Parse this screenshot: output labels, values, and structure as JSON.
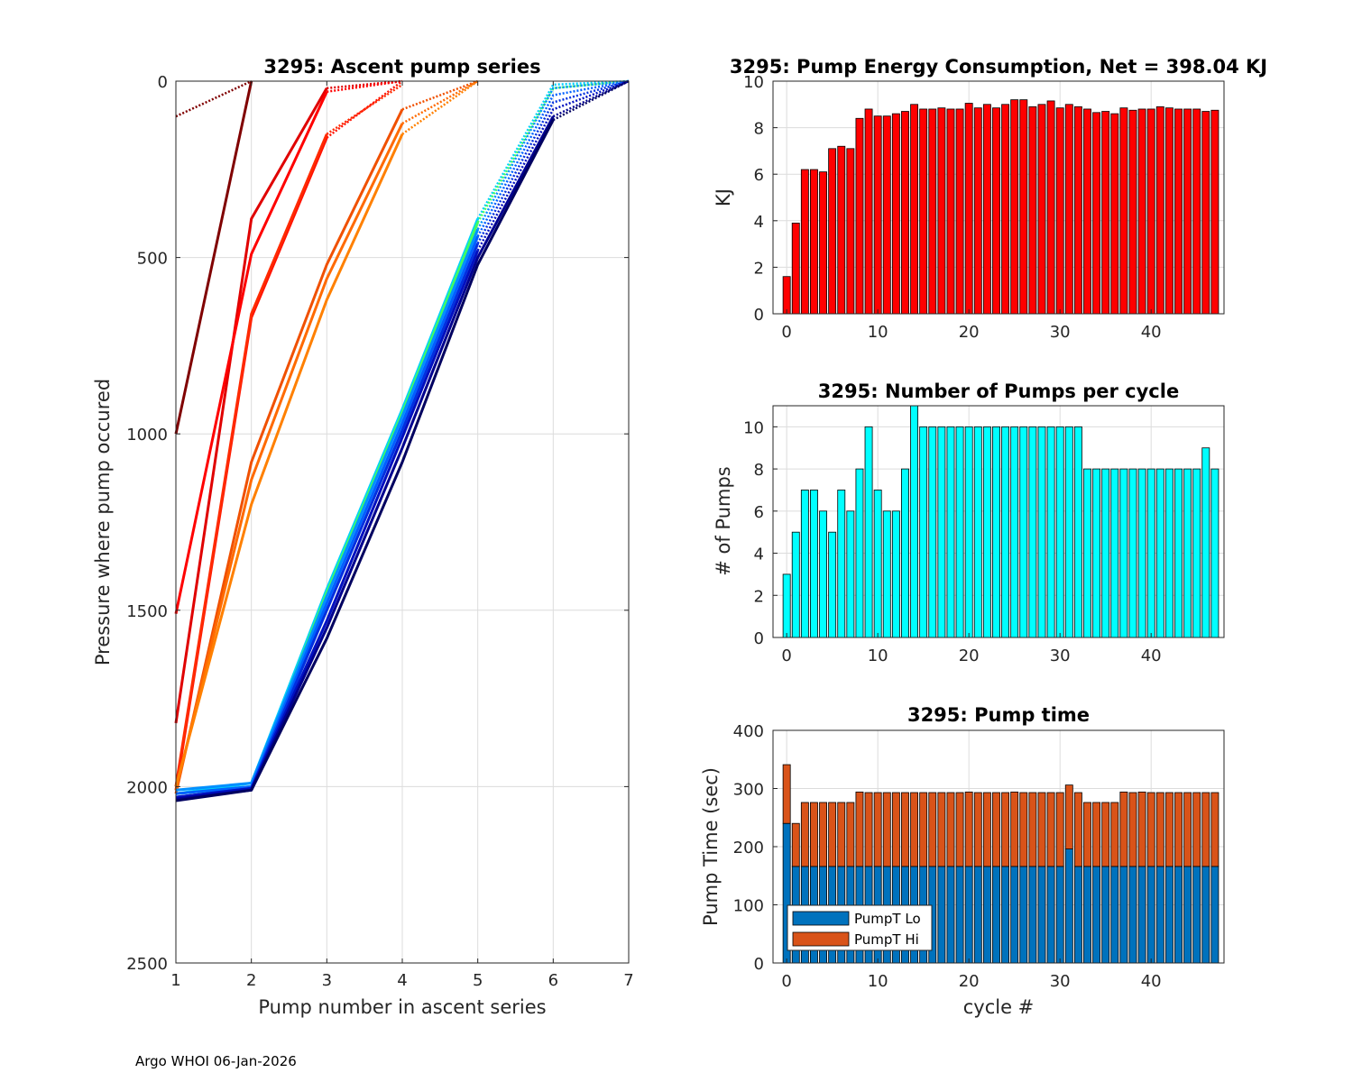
{
  "footer": "Argo WHOI 06-Jan-2026",
  "colors": {
    "energy_bar": "#ff0000",
    "pumps_bar": "#00ffff",
    "pumpt_lo": "#0072bd",
    "pumpt_hi": "#d95319"
  },
  "chart_data": [
    {
      "id": "ascent",
      "type": "line",
      "title": "3295: Ascent pump series",
      "xlabel": "Pump number in ascent series",
      "ylabel": "Pressure where pump occured",
      "xlim": [
        1,
        7
      ],
      "ylim": [
        0,
        2500
      ],
      "y_reversed": true,
      "xticks": [
        "1",
        "2",
        "3",
        "4",
        "5",
        "6",
        "7"
      ],
      "yticks": [
        "0",
        "500",
        "1000",
        "1500",
        "2000",
        "2500"
      ],
      "series": [
        {
          "name": "c0",
          "color": "#800000",
          "dotted_from": 1,
          "points": [
            [
              1,
              1000
            ],
            [
              2,
              0
            ]
          ]
        },
        {
          "name": "c0b",
          "color": "#800000",
          "dotted_from": 0,
          "points": [
            [
              1,
              100
            ],
            [
              2,
              0
            ]
          ]
        },
        {
          "name": "c1",
          "color": "#e00000",
          "dotted_from": 2,
          "points": [
            [
              1,
              1820
            ],
            [
              2,
              390
            ],
            [
              3,
              20
            ],
            [
              4,
              0
            ]
          ]
        },
        {
          "name": "c2",
          "color": "#ff0000",
          "dotted_from": 2,
          "points": [
            [
              1,
              1510
            ],
            [
              2,
              490
            ],
            [
              3,
              30
            ],
            [
              4,
              0
            ]
          ]
        },
        {
          "name": "c3",
          "color": "#ff1000",
          "dotted_from": 2,
          "points": [
            [
              1,
              2010
            ],
            [
              2,
              670
            ],
            [
              3,
              160
            ],
            [
              4,
              0
            ]
          ]
        },
        {
          "name": "c4",
          "color": "#ff2a00",
          "dotted_from": 2,
          "points": [
            [
              1,
              2000
            ],
            [
              2,
              660
            ],
            [
              3,
              150
            ],
            [
              4,
              10
            ]
          ]
        },
        {
          "name": "c5",
          "color": "#f05000",
          "dotted_from": 3,
          "points": [
            [
              1,
              2020
            ],
            [
              2,
              1080
            ],
            [
              3,
              520
            ],
            [
              4,
              80
            ],
            [
              5,
              0
            ]
          ]
        },
        {
          "name": "c6",
          "color": "#ff6a00",
          "dotted_from": 3,
          "points": [
            [
              1,
              2010
            ],
            [
              2,
              1130
            ],
            [
              3,
              560
            ],
            [
              4,
              120
            ],
            [
              5,
              0
            ]
          ]
        },
        {
          "name": "c7",
          "color": "#ff8000",
          "dotted_from": 3,
          "points": [
            [
              1,
              2000
            ],
            [
              2,
              1200
            ],
            [
              3,
              620
            ],
            [
              4,
              150
            ],
            [
              5,
              0
            ]
          ]
        },
        {
          "name": "c8",
          "color": "#00d0ff",
          "dotted_from": 4,
          "points": [
            [
              1,
              2020
            ],
            [
              2,
              1990
            ],
            [
              3,
              1440
            ],
            [
              4,
              930
            ],
            [
              5,
              390
            ],
            [
              6,
              10
            ],
            [
              7,
              0
            ]
          ]
        },
        {
          "name": "c9",
          "color": "#40ff60",
          "dotted_from": 4,
          "points": [
            [
              1,
              2020
            ],
            [
              2,
              2000
            ],
            [
              3,
              1450
            ],
            [
              4,
              940
            ],
            [
              5,
              400
            ],
            [
              6,
              20
            ],
            [
              7,
              0
            ]
          ]
        },
        {
          "name": "c10",
          "color": "#0090ff",
          "dotted_from": 4,
          "points": [
            [
              1,
              2010
            ],
            [
              2,
              1990
            ],
            [
              3,
              1460
            ],
            [
              4,
              950
            ],
            [
              5,
              420
            ],
            [
              6,
              20
            ],
            [
              7,
              0
            ]
          ]
        },
        {
          "name": "c11",
          "color": "#0060ff",
          "dotted_from": 4,
          "points": [
            [
              1,
              2020
            ],
            [
              2,
              2000
            ],
            [
              3,
              1480
            ],
            [
              4,
              970
            ],
            [
              5,
              440
            ],
            [
              6,
              40
            ],
            [
              7,
              0
            ]
          ]
        },
        {
          "name": "c12",
          "color": "#0030e0",
          "dotted_from": 4,
          "points": [
            [
              1,
              2030
            ],
            [
              2,
              2005
            ],
            [
              3,
              1500
            ],
            [
              4,
              990
            ],
            [
              5,
              460
            ],
            [
              6,
              60
            ],
            [
              7,
              0
            ]
          ]
        },
        {
          "name": "c13",
          "color": "#0010c0",
          "dotted_from": 4,
          "points": [
            [
              1,
              2030
            ],
            [
              2,
              2005
            ],
            [
              3,
              1530
            ],
            [
              4,
              1010
            ],
            [
              5,
              480
            ],
            [
              6,
              80
            ],
            [
              7,
              0
            ]
          ]
        },
        {
          "name": "c14",
          "color": "#000090",
          "dotted_from": 5,
          "points": [
            [
              1,
              2035
            ],
            [
              2,
              2010
            ],
            [
              3,
              1550
            ],
            [
              4,
              1040
            ],
            [
              5,
              500
            ],
            [
              6,
              100
            ],
            [
              7,
              0
            ]
          ]
        },
        {
          "name": "c15",
          "color": "#000060",
          "dotted_from": 5,
          "points": [
            [
              1,
              2040
            ],
            [
              2,
              2010
            ],
            [
              3,
              1580
            ],
            [
              4,
              1080
            ],
            [
              5,
              520
            ],
            [
              6,
              110
            ],
            [
              7,
              0
            ]
          ]
        }
      ]
    },
    {
      "id": "energy",
      "type": "bar",
      "title": "3295: Pump Energy Consumption,  Net = 398.04 KJ",
      "xlabel": "",
      "ylabel": "KJ",
      "xlim": [
        -1.5,
        48
      ],
      "ylim": [
        0,
        10
      ],
      "xticks": [
        "0",
        "10",
        "20",
        "30",
        "40"
      ],
      "yticks": [
        "0",
        "2",
        "4",
        "6",
        "8",
        "10"
      ],
      "categories": [
        0,
        1,
        2,
        3,
        4,
        5,
        6,
        7,
        8,
        9,
        10,
        11,
        12,
        13,
        14,
        15,
        16,
        17,
        18,
        19,
        20,
        21,
        22,
        23,
        24,
        25,
        26,
        27,
        28,
        29,
        30,
        31,
        32,
        33,
        34,
        35,
        36,
        37,
        38,
        39,
        40,
        41,
        42,
        43,
        44,
        45,
        46,
        47
      ],
      "values": [
        1.6,
        3.9,
        6.2,
        6.2,
        6.1,
        7.1,
        7.2,
        7.1,
        8.4,
        8.8,
        8.5,
        8.5,
        8.6,
        8.7,
        9.0,
        8.8,
        8.8,
        8.85,
        8.8,
        8.8,
        9.05,
        8.85,
        9.0,
        8.85,
        9.0,
        9.2,
        9.2,
        8.9,
        9.0,
        9.15,
        8.85,
        9.0,
        8.9,
        8.8,
        8.65,
        8.7,
        8.6,
        8.85,
        8.75,
        8.8,
        8.8,
        8.9,
        8.85,
        8.8,
        8.8,
        8.8,
        8.7,
        8.75
      ]
    },
    {
      "id": "pumps",
      "type": "bar",
      "title": "3295: Number of Pumps per cycle",
      "xlabel": "",
      "ylabel": "# of Pumps",
      "xlim": [
        -1.5,
        48
      ],
      "ylim": [
        0,
        11
      ],
      "xticks": [
        "0",
        "10",
        "20",
        "30",
        "40"
      ],
      "yticks": [
        "0",
        "2",
        "4",
        "6",
        "8",
        "10"
      ],
      "categories": [
        0,
        1,
        2,
        3,
        4,
        5,
        6,
        7,
        8,
        9,
        10,
        11,
        12,
        13,
        14,
        15,
        16,
        17,
        18,
        19,
        20,
        21,
        22,
        23,
        24,
        25,
        26,
        27,
        28,
        29,
        30,
        31,
        32,
        33,
        34,
        35,
        36,
        37,
        38,
        39,
        40,
        41,
        42,
        43,
        44,
        45,
        46,
        47
      ],
      "values": [
        3,
        5,
        7,
        7,
        6,
        5,
        7,
        6,
        8,
        10,
        7,
        6,
        6,
        8,
        11,
        10,
        10,
        10,
        10,
        10,
        10,
        10,
        10,
        10,
        10,
        10,
        10,
        10,
        10,
        10,
        10,
        10,
        10,
        8,
        8,
        8,
        8,
        8,
        8,
        8,
        8,
        8,
        8,
        8,
        8,
        8,
        9,
        8
      ]
    },
    {
      "id": "pumptime",
      "type": "bar",
      "stacked": true,
      "title": "3295: Pump time",
      "xlabel": "cycle #",
      "ylabel": "Pump Time (sec)",
      "xlim": [
        -1.5,
        48
      ],
      "ylim": [
        0,
        400
      ],
      "xticks": [
        "0",
        "10",
        "20",
        "30",
        "40"
      ],
      "yticks": [
        "0",
        "100",
        "200",
        "300",
        "400"
      ],
      "legend": [
        "PumpT Lo",
        "PumpT Hi"
      ],
      "legend_position": "bottom-left",
      "categories": [
        0,
        1,
        2,
        3,
        4,
        5,
        6,
        7,
        8,
        9,
        10,
        11,
        12,
        13,
        14,
        15,
        16,
        17,
        18,
        19,
        20,
        21,
        22,
        23,
        24,
        25,
        26,
        27,
        28,
        29,
        30,
        31,
        32,
        33,
        34,
        35,
        36,
        37,
        38,
        39,
        40,
        41,
        42,
        43,
        44,
        45,
        46,
        47
      ],
      "series": [
        {
          "name": "PumpT Lo",
          "values": [
            240,
            166,
            166,
            166,
            166,
            166,
            166,
            166,
            166,
            166,
            166,
            166,
            166,
            166,
            166,
            166,
            166,
            166,
            166,
            166,
            166,
            166,
            166,
            166,
            166,
            166,
            166,
            166,
            166,
            166,
            166,
            196,
            166,
            166,
            166,
            166,
            166,
            166,
            166,
            166,
            166,
            166,
            166,
            166,
            166,
            166,
            166,
            166
          ]
        },
        {
          "name": "PumpT Hi",
          "values": [
            101,
            74,
            110,
            110,
            110,
            110,
            110,
            110,
            128,
            127,
            127,
            127,
            127,
            127,
            127,
            127,
            127,
            127,
            127,
            127,
            128,
            127,
            127,
            127,
            127,
            128,
            127,
            127,
            127,
            127,
            127,
            110,
            127,
            110,
            110,
            110,
            110,
            128,
            127,
            128,
            127,
            127,
            127,
            127,
            127,
            127,
            127,
            127
          ]
        }
      ]
    }
  ]
}
